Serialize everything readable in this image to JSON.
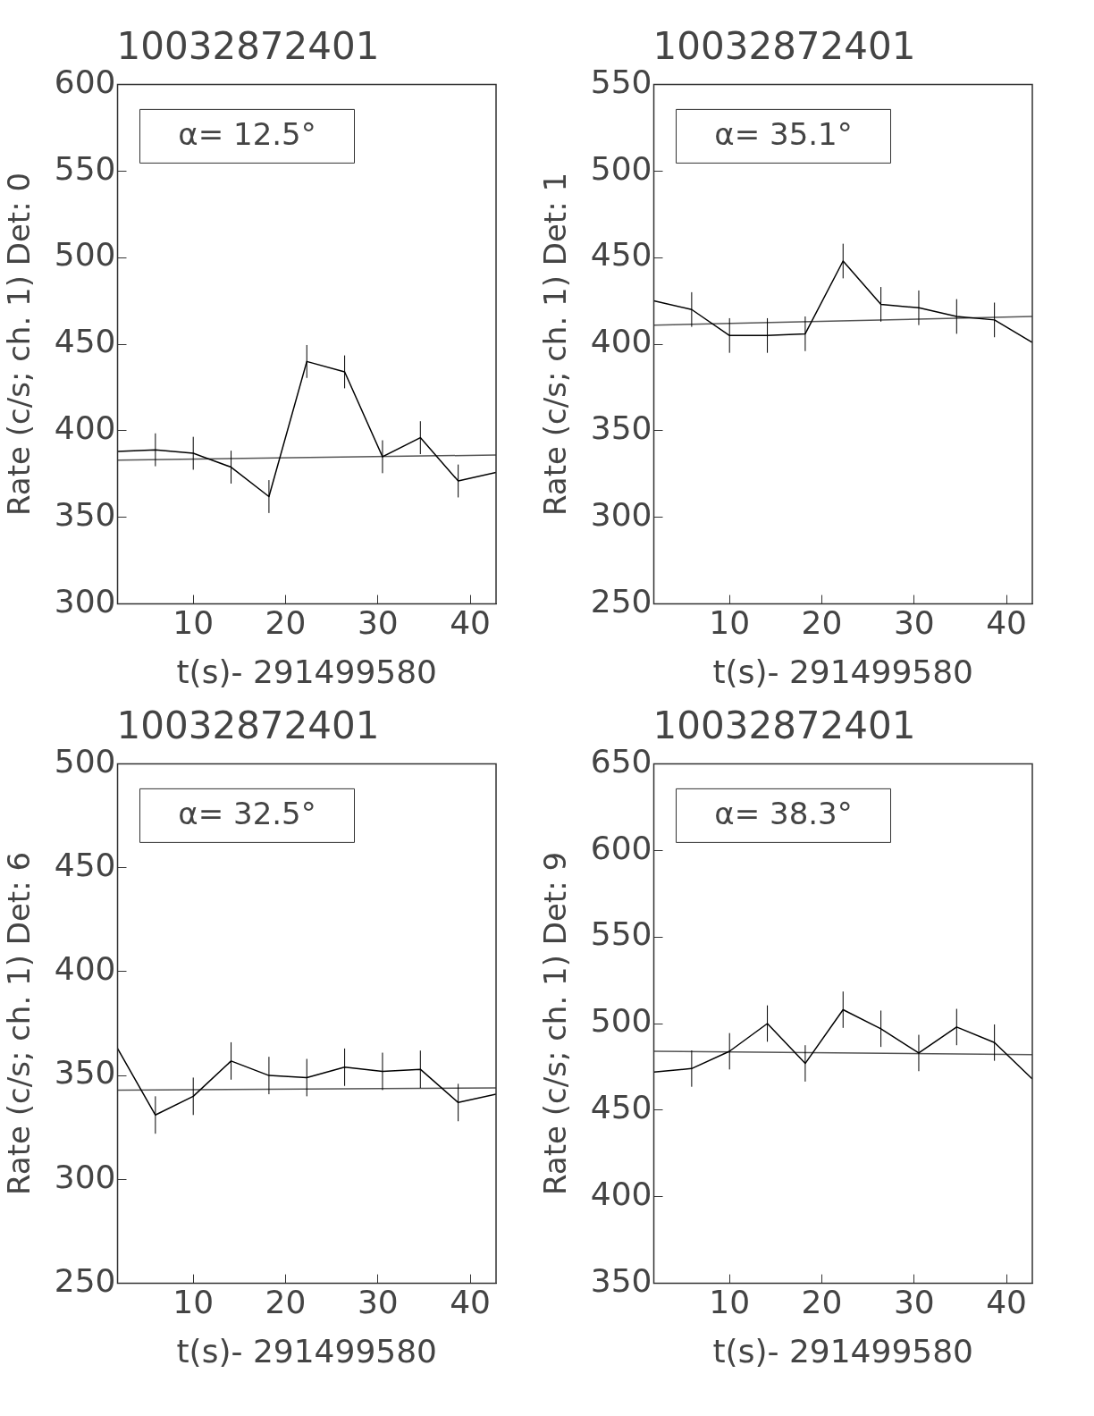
{
  "chart_data": [
    {
      "type": "line",
      "title": "10032872401",
      "xlabel": "t(s)- 291499580",
      "ylabel": "Rate (c/s; ch. 1) Det: 0",
      "annotations": [
        "α= 12.5°"
      ],
      "xlim": [
        1.8,
        42.8
      ],
      "xticks": [
        10,
        20,
        30,
        40
      ],
      "ylim": [
        300,
        600
      ],
      "yticks": [
        300,
        350,
        400,
        450,
        500,
        550,
        600
      ],
      "marker": "none",
      "series": [
        {
          "color": "#000000",
          "x": [
            1.8,
            5.9,
            10.0,
            14.1,
            18.2,
            22.3,
            26.4,
            30.5,
            34.6,
            38.7,
            42.8
          ],
          "values": [
            388,
            389,
            387,
            379,
            362,
            440,
            434,
            385,
            396,
            371,
            376
          ],
          "errors": [
            null,
            9.5,
            9.5,
            9.5,
            9.5,
            9.5,
            9.5,
            9.5,
            9.5,
            9.5,
            null
          ]
        },
        {
          "color": "#555555",
          "x": [
            1.8,
            42.8
          ],
          "values": [
            383,
            386
          ]
        }
      ]
    },
    {
      "type": "line",
      "title": "10032872401",
      "xlabel": "t(s)- 291499580",
      "ylabel": "Rate (c/s; ch. 1) Det: 1",
      "annotations": [
        "α= 35.1°"
      ],
      "xlim": [
        1.8,
        42.8
      ],
      "xticks": [
        10,
        20,
        30,
        40
      ],
      "ylim": [
        250,
        550
      ],
      "yticks": [
        250,
        300,
        350,
        400,
        450,
        500,
        550
      ],
      "marker": "none",
      "series": [
        {
          "color": "#000000",
          "x": [
            1.8,
            5.9,
            10.0,
            14.1,
            18.2,
            22.3,
            26.4,
            30.5,
            34.6,
            38.7,
            42.8
          ],
          "values": [
            425,
            420,
            405,
            405,
            406,
            448,
            423,
            421,
            416,
            414,
            401
          ],
          "errors": [
            null,
            10,
            10,
            10,
            10,
            10,
            10,
            10,
            10,
            10,
            null
          ]
        },
        {
          "color": "#555555",
          "x": [
            1.8,
            42.8
          ],
          "values": [
            411,
            416
          ]
        }
      ]
    },
    {
      "type": "line",
      "title": "10032872401",
      "xlabel": "t(s)- 291499580",
      "ylabel": "Rate (c/s; ch. 1) Det: 6",
      "annotations": [
        "α= 32.5°"
      ],
      "xlim": [
        1.8,
        42.8
      ],
      "xticks": [
        10,
        20,
        30,
        40
      ],
      "ylim": [
        250,
        500
      ],
      "yticks": [
        250,
        300,
        350,
        400,
        450,
        500
      ],
      "marker": "none",
      "series": [
        {
          "color": "#000000",
          "x": [
            1.8,
            5.9,
            10.0,
            14.1,
            18.2,
            22.3,
            26.4,
            30.5,
            34.6,
            38.7,
            42.8
          ],
          "values": [
            363,
            331,
            340,
            357,
            350,
            349,
            354,
            352,
            353,
            337,
            341
          ],
          "errors": [
            null,
            9,
            9,
            9,
            9,
            9,
            9,
            9,
            9,
            9,
            null
          ]
        },
        {
          "color": "#555555",
          "x": [
            1.8,
            42.8
          ],
          "values": [
            343,
            344
          ]
        }
      ]
    },
    {
      "type": "line",
      "title": "10032872401",
      "xlabel": "t(s)- 291499580",
      "ylabel": "Rate (c/s; ch. 1) Det: 9",
      "annotations": [
        "α= 38.3°"
      ],
      "xlim": [
        1.8,
        42.8
      ],
      "xticks": [
        10,
        20,
        30,
        40
      ],
      "ylim": [
        350,
        650
      ],
      "yticks": [
        350,
        400,
        450,
        500,
        550,
        600,
        650
      ],
      "marker": "none",
      "series": [
        {
          "color": "#000000",
          "x": [
            1.8,
            5.9,
            10.0,
            14.1,
            18.2,
            22.3,
            26.4,
            30.5,
            34.6,
            38.7,
            42.8
          ],
          "values": [
            472,
            474,
            484,
            500,
            477,
            508,
            497,
            483,
            498,
            489,
            468
          ],
          "errors": [
            null,
            10.5,
            10.5,
            10.5,
            10.5,
            10.5,
            10.5,
            10.5,
            10.5,
            10.5,
            null
          ]
        },
        {
          "color": "#555555",
          "x": [
            1.8,
            42.8
          ],
          "values": [
            484,
            482
          ]
        }
      ]
    }
  ]
}
